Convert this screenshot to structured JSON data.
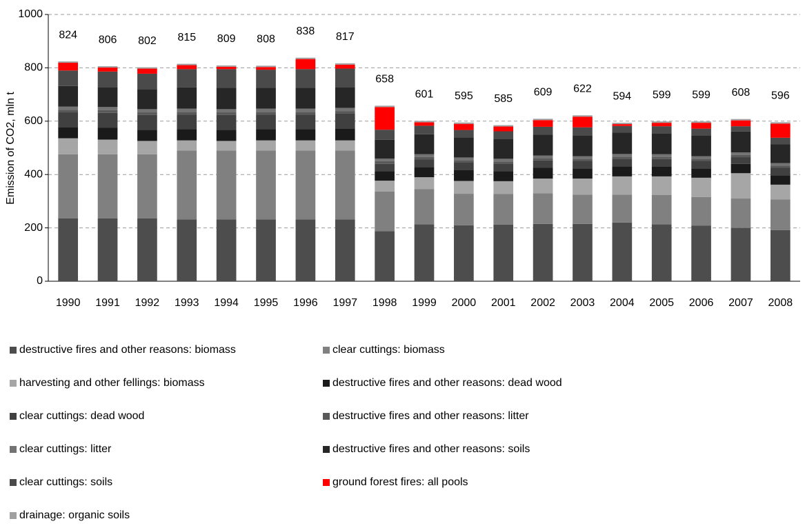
{
  "chart_data": {
    "type": "stacked_bar",
    "y_label": "Emission of CO2, mln t",
    "categories": [
      "1990",
      "1991",
      "1992",
      "1993",
      "1994",
      "1995",
      "1996",
      "1997",
      "1998",
      "1999",
      "2000",
      "2001",
      "2002",
      "2003",
      "2004",
      "2005",
      "2006",
      "2007",
      "2008"
    ],
    "totals": [
      824,
      806,
      802,
      815,
      809,
      808,
      838,
      817,
      658,
      601,
      595,
      585,
      609,
      622,
      594,
      599,
      599,
      608,
      596
    ],
    "ylim": [
      0,
      1000
    ],
    "yticks": [
      0,
      200,
      400,
      600,
      800,
      1000
    ],
    "grid": true,
    "series": [
      {
        "name": "destructive fires and other reasons: biomass",
        "color": "#4d4d4d",
        "values": [
          236,
          236,
          236,
          232,
          232,
          232,
          232,
          232,
          188,
          213,
          210,
          212,
          215,
          215,
          220,
          213,
          208,
          200,
          192
        ]
      },
      {
        "name": "clear cuttings: biomass",
        "color": "#808080",
        "values": [
          240,
          240,
          240,
          258,
          258,
          258,
          258,
          258,
          148,
          132,
          118,
          115,
          115,
          110,
          105,
          110,
          108,
          110,
          115
        ]
      },
      {
        "name": "harvesting and other fellings: biomass",
        "color": "#a6a6a6",
        "values": [
          60,
          55,
          50,
          38,
          36,
          38,
          38,
          38,
          41,
          45,
          48,
          48,
          55,
          60,
          68,
          70,
          72,
          95,
          55
        ]
      },
      {
        "name": "destructive fires and other reasons: dead wood",
        "color": "#1a1a1a",
        "values": [
          42,
          45,
          42,
          42,
          42,
          42,
          42,
          45,
          35,
          38,
          40,
          38,
          40,
          38,
          38,
          37,
          35,
          35,
          35
        ]
      },
      {
        "name": "clear cuttings: dead wood",
        "color": "#404040",
        "values": [
          55,
          55,
          55,
          55,
          55,
          55,
          55,
          55,
          28,
          28,
          30,
          28,
          28,
          28,
          28,
          28,
          28,
          25,
          28
        ]
      },
      {
        "name": "destructive fires and other reasons: litter",
        "color": "#595959",
        "values": [
          10,
          10,
          10,
          10,
          10,
          10,
          10,
          10,
          10,
          10,
          8,
          8,
          8,
          8,
          8,
          8,
          8,
          8,
          8
        ]
      },
      {
        "name": "clear cuttings: litter",
        "color": "#737373",
        "values": [
          12,
          12,
          12,
          12,
          12,
          12,
          12,
          12,
          10,
          10,
          10,
          10,
          10,
          10,
          10,
          10,
          10,
          10,
          10
        ]
      },
      {
        "name": "destructive fires and other reasons: soils",
        "color": "#262626",
        "values": [
          77,
          75,
          75,
          80,
          80,
          78,
          78,
          78,
          70,
          75,
          75,
          75,
          78,
          78,
          80,
          78,
          78,
          78,
          70
        ]
      },
      {
        "name": "clear cuttings: soils",
        "color": "#4a4a4a",
        "values": [
          58,
          58,
          58,
          68,
          70,
          68,
          70,
          69,
          38,
          32,
          28,
          28,
          30,
          30,
          25,
          27,
          25,
          20,
          25
        ]
      },
      {
        "name": "ground forest fires: all pools",
        "color": "#ff0000",
        "values": [
          29,
          15,
          19,
          15,
          9,
          10,
          38,
          15,
          85,
          13,
          23,
          18,
          25,
          40,
          7,
          13,
          22,
          22,
          53
        ]
      },
      {
        "name": "drainage: organic soils",
        "color": "#a0a0a0",
        "values": [
          5,
          5,
          5,
          5,
          5,
          5,
          5,
          5,
          5,
          5,
          5,
          5,
          5,
          5,
          5,
          5,
          5,
          5,
          5
        ]
      }
    ]
  }
}
